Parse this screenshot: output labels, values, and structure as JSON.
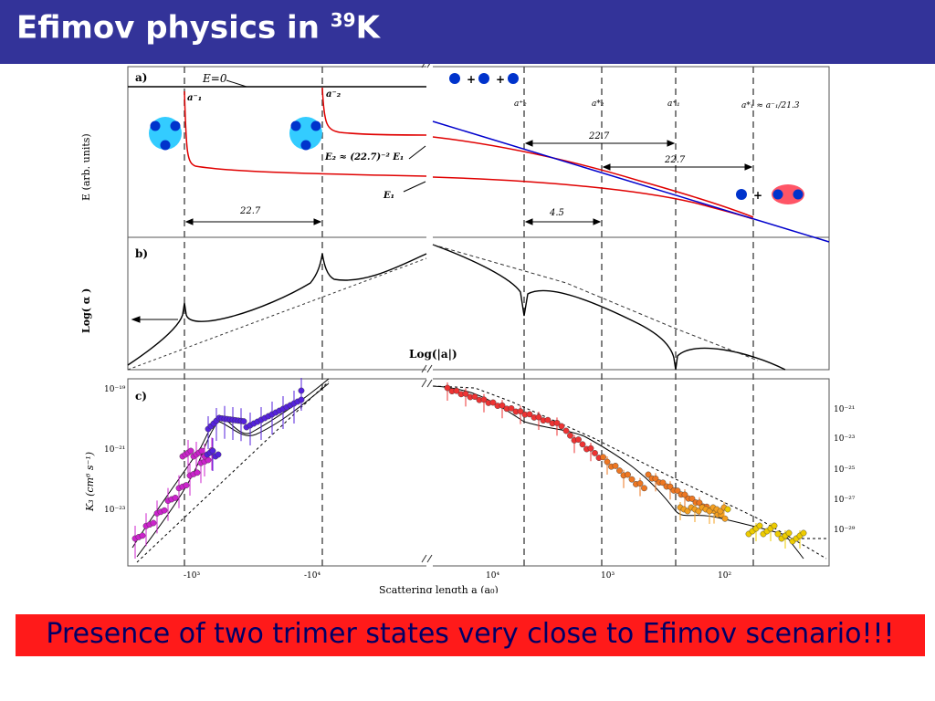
{
  "slide": {
    "title_prefix": "Efimov physics in ",
    "title_sup": "39",
    "title_suffix": "K",
    "colors": {
      "title_bg": "#333399",
      "banner_bg": "#ff1a1a",
      "banner_text": "#000066"
    }
  },
  "panel_a": {
    "label": "a)",
    "ylabel": "E (arb. units)",
    "e0_label": "E=0",
    "a1_minus": "a⁻₁",
    "a2_minus": "a⁻₂",
    "e2_relation": "E₂ ≈ (22.7)⁻² E₁",
    "e1_label": "E₁",
    "spacing_left": "22.7",
    "a2_plus": "a⁺₂",
    "a2_star": "a*₂",
    "a1_plus": "a⁺₁",
    "a1_star_rel": "a*₁ ≈ a⁻₁/21.3",
    "spacing_top": "22.7",
    "spacing_mid": "22.7",
    "spacing_low": "4.5"
  },
  "panel_b": {
    "label": "b)",
    "ylabel": "Log( α )",
    "xlabel": "Log(|a|)"
  },
  "panel_c": {
    "label": "c)",
    "ylabel": "K₃ (cm⁶ s⁻¹)",
    "xlabel": "Scattering length  a (a₀)",
    "left_yticks": [
      "10⁻¹⁹",
      "10⁻²¹",
      "10⁻²³"
    ],
    "right_yticks": [
      "10⁻²¹",
      "10⁻²³",
      "10⁻²⁵",
      "10⁻²⁷",
      "10⁻²⁹"
    ],
    "left_xticks": [
      "-10³",
      "-10⁴"
    ],
    "right_xticks": [
      "10⁴",
      "10³",
      "10²"
    ]
  },
  "banner": {
    "text": "Presence of two trimer states very close to Efimov scenario!!!"
  }
}
